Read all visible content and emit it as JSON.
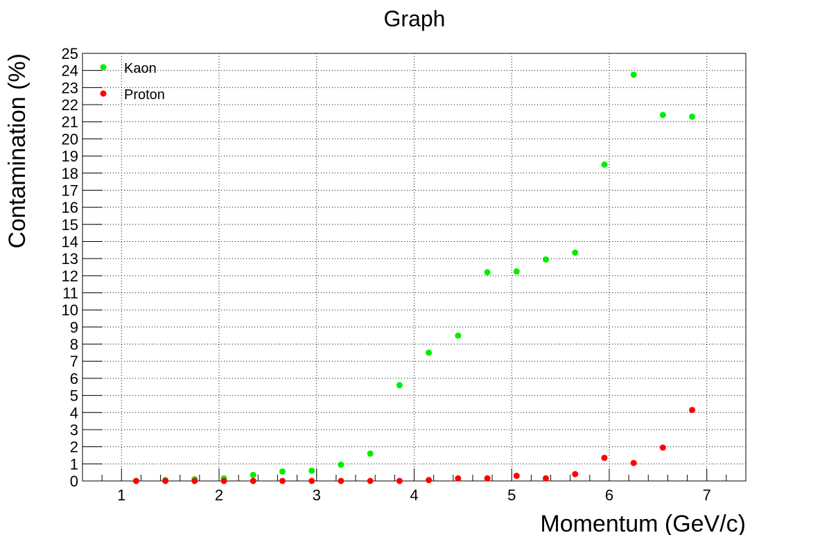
{
  "chart_data": {
    "type": "scatter",
    "title": "Graph",
    "xlabel": "Momentum (GeV/c)",
    "ylabel": "Contamination (%)",
    "xlim": [
      0.6,
      7.4
    ],
    "ylim": [
      0,
      25
    ],
    "xticks": [
      1,
      2,
      3,
      4,
      5,
      6,
      7
    ],
    "yticks": [
      0,
      1,
      2,
      3,
      4,
      5,
      6,
      7,
      8,
      9,
      10,
      11,
      12,
      13,
      14,
      15,
      16,
      17,
      18,
      19,
      20,
      21,
      22,
      23,
      24,
      25
    ],
    "grid": true,
    "legend_position": "top-left",
    "series": [
      {
        "name": "Kaon",
        "color": "#00ee00",
        "x": [
          1.15,
          1.45,
          1.75,
          2.05,
          2.35,
          2.65,
          2.95,
          3.25,
          3.55,
          3.85,
          4.15,
          4.45,
          4.75,
          5.05,
          5.35,
          5.65,
          5.95,
          6.25,
          6.55,
          6.85
        ],
        "y": [
          0.0,
          0.05,
          0.1,
          0.15,
          0.35,
          0.55,
          0.6,
          0.95,
          1.6,
          5.6,
          7.5,
          8.5,
          12.2,
          12.25,
          12.95,
          13.35,
          18.5,
          23.75,
          21.4,
          21.3
        ]
      },
      {
        "name": "Proton",
        "color": "#ff0000",
        "x": [
          1.15,
          1.45,
          1.75,
          2.05,
          2.35,
          2.65,
          2.95,
          3.25,
          3.55,
          3.85,
          4.15,
          4.45,
          4.75,
          5.05,
          5.35,
          5.65,
          5.95,
          6.25,
          6.55,
          6.85
        ],
        "y": [
          0.0,
          0.0,
          0.0,
          0.0,
          0.0,
          0.0,
          0.0,
          0.0,
          0.0,
          0.0,
          0.05,
          0.15,
          0.15,
          0.3,
          0.15,
          0.4,
          1.35,
          1.05,
          1.95,
          4.15
        ]
      }
    ]
  }
}
